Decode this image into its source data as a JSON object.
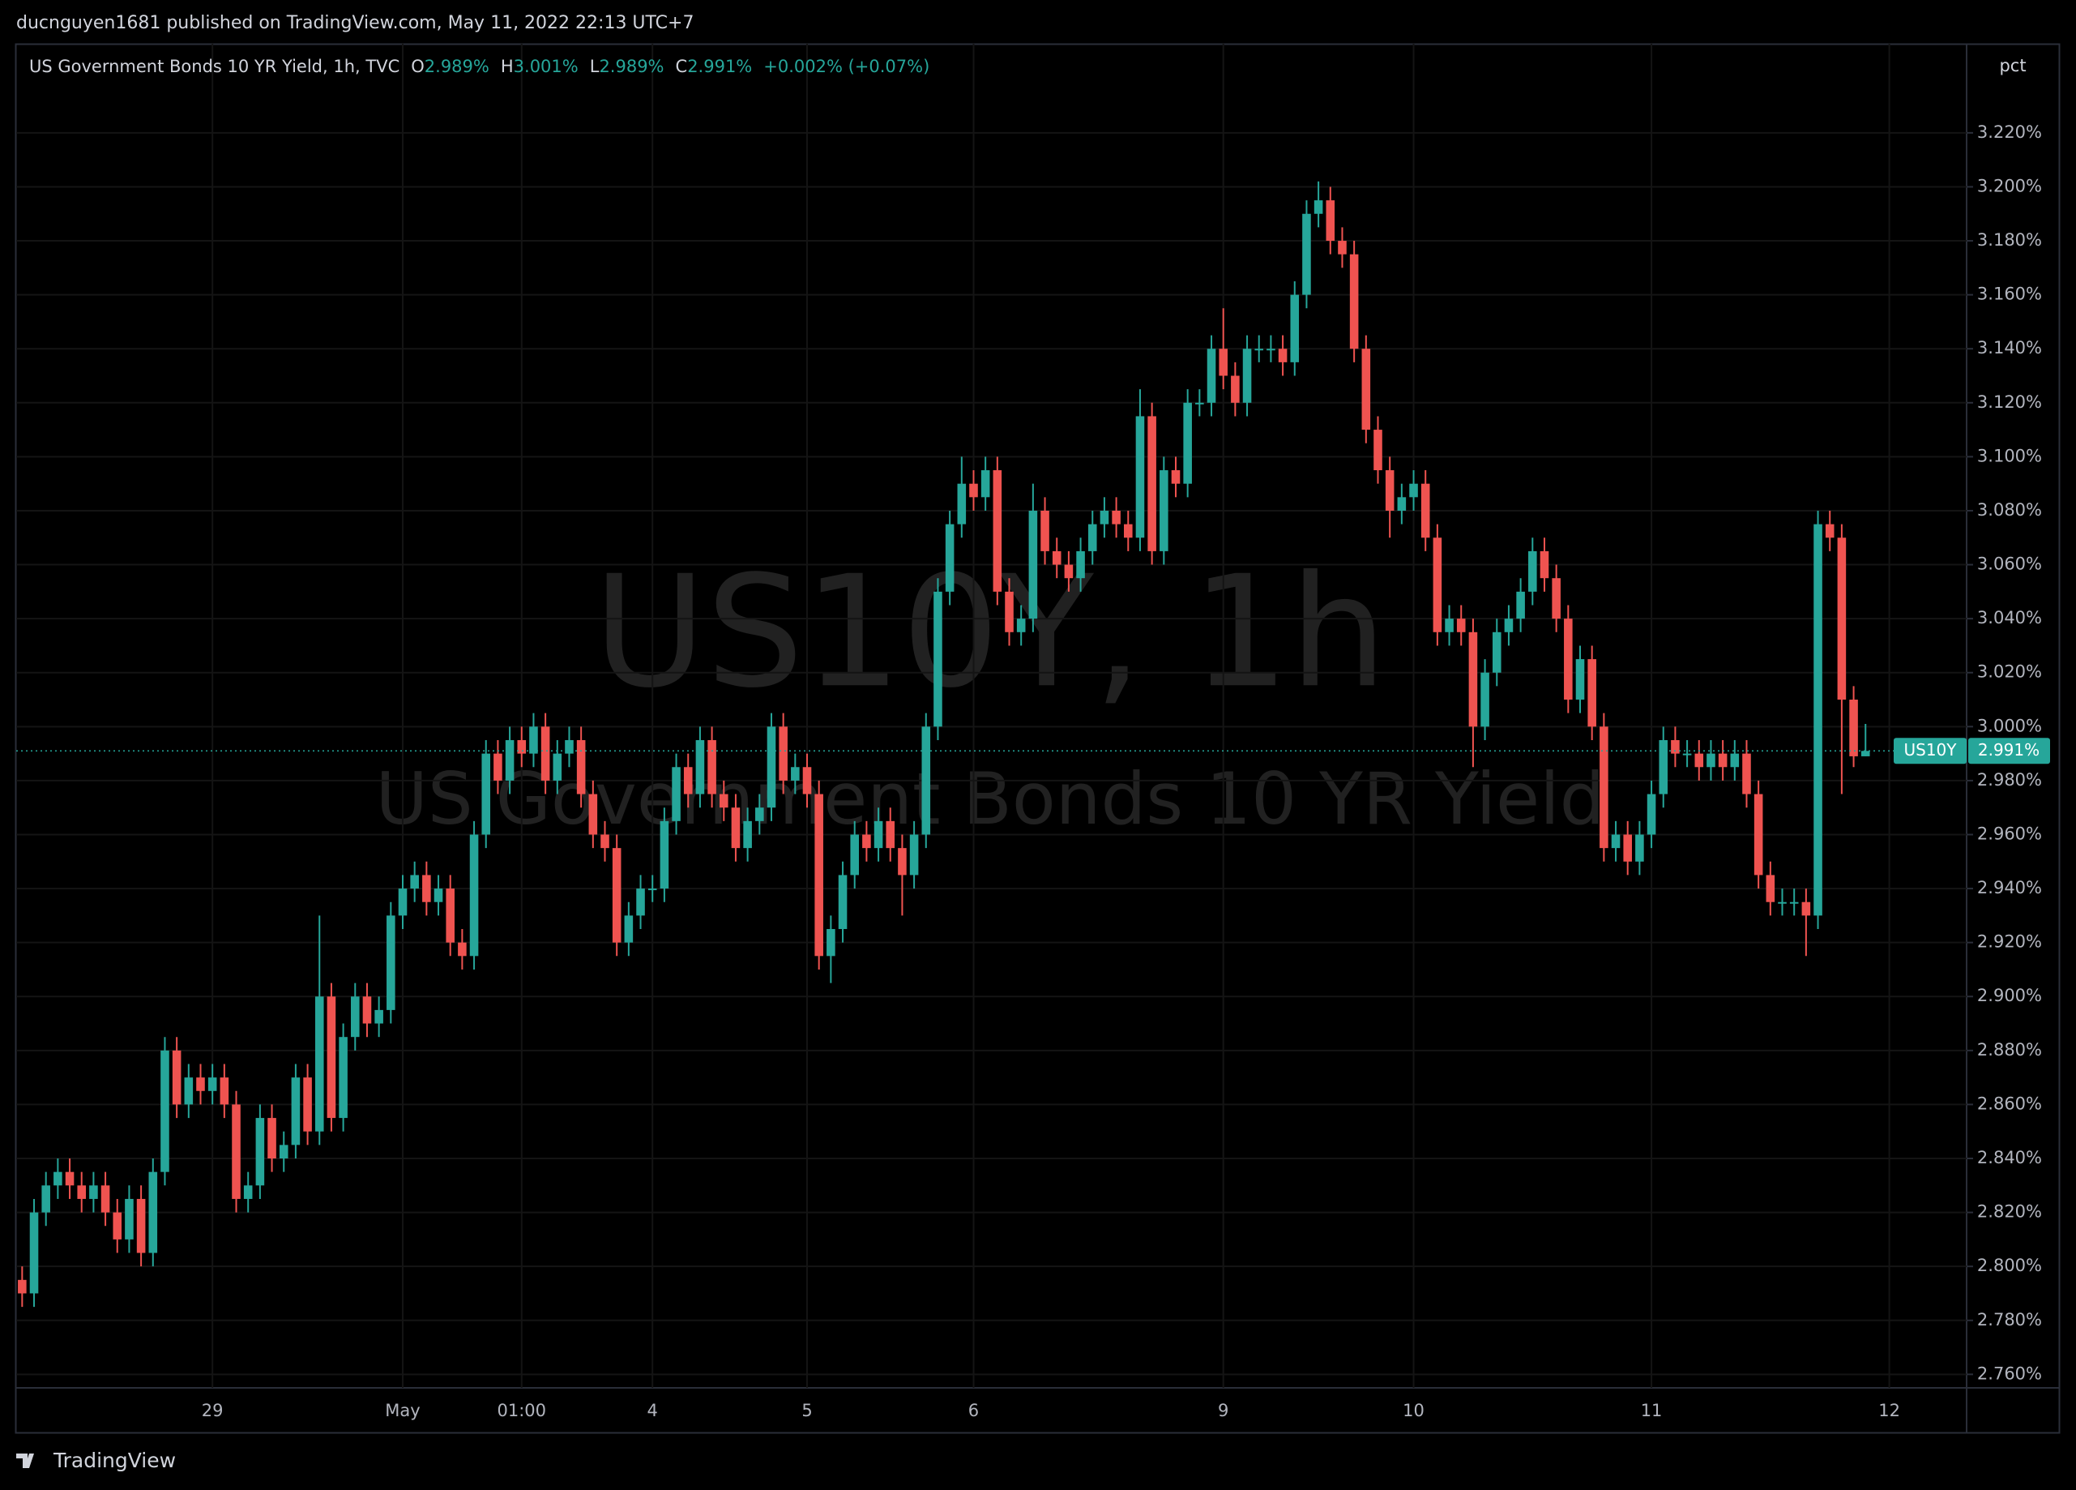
{
  "header": {
    "publisher": "ducnguyen1681 published on TradingView.com, May 11, 2022 22:13 UTC+7"
  },
  "footer": {
    "brand": "TradingView"
  },
  "chart_data": {
    "type": "candlestick",
    "symbol": "US10Y",
    "watermark": {
      "line1": "US10Y, 1h",
      "line2": "US Government Bonds 10 YR Yield"
    },
    "legend": {
      "title": "US Government Bonds 10 YR Yield, 1h, TVC",
      "o_label": "O",
      "o": "2.989%",
      "h_label": "H",
      "h": "3.001%",
      "l_label": "L",
      "l": "2.989%",
      "c_label": "C",
      "c": "2.991%",
      "change": "+0.002% (+0.07%)"
    },
    "y_unit": "pct",
    "up_color": "#26a69a",
    "down_color": "#ef5350",
    "grid": true,
    "last_price": {
      "value": 2.991,
      "label": "2.991%"
    },
    "ylim": [
      2.755,
      3.253
    ],
    "yticks": [
      {
        "value": 2.76,
        "label": "2.760%"
      },
      {
        "value": 2.78,
        "label": "2.780%"
      },
      {
        "value": 2.8,
        "label": "2.800%"
      },
      {
        "value": 2.82,
        "label": "2.820%"
      },
      {
        "value": 2.84,
        "label": "2.840%"
      },
      {
        "value": 2.86,
        "label": "2.860%"
      },
      {
        "value": 2.88,
        "label": "2.880%"
      },
      {
        "value": 2.9,
        "label": "2.900%"
      },
      {
        "value": 2.92,
        "label": "2.920%"
      },
      {
        "value": 2.94,
        "label": "2.940%"
      },
      {
        "value": 2.96,
        "label": "2.960%"
      },
      {
        "value": 2.98,
        "label": "2.980%"
      },
      {
        "value": 3.0,
        "label": "3.000%"
      },
      {
        "value": 3.02,
        "label": "3.020%"
      },
      {
        "value": 3.04,
        "label": "3.040%"
      },
      {
        "value": 3.06,
        "label": "3.060%"
      },
      {
        "value": 3.08,
        "label": "3.080%"
      },
      {
        "value": 3.1,
        "label": "3.100%"
      },
      {
        "value": 3.12,
        "label": "3.120%"
      },
      {
        "value": 3.14,
        "label": "3.140%"
      },
      {
        "value": 3.16,
        "label": "3.160%"
      },
      {
        "value": 3.18,
        "label": "3.180%"
      },
      {
        "value": 3.2,
        "label": "3.200%"
      },
      {
        "value": 3.22,
        "label": "3.220%"
      }
    ],
    "categories": [
      null,
      null,
      null,
      null,
      null,
      null,
      null,
      null,
      null,
      null,
      null,
      null,
      null,
      null,
      null,
      null,
      "29",
      null,
      null,
      null,
      null,
      null,
      null,
      null,
      null,
      null,
      null,
      null,
      null,
      null,
      null,
      null,
      "May",
      null,
      null,
      null,
      null,
      null,
      null,
      null,
      null,
      null,
      "01:00",
      null,
      null,
      null,
      null,
      null,
      null,
      null,
      null,
      null,
      null,
      "4",
      null,
      null,
      null,
      null,
      null,
      null,
      null,
      null,
      null,
      null,
      null,
      null,
      "5",
      null,
      null,
      null,
      null,
      null,
      null,
      null,
      null,
      null,
      null,
      null,
      null,
      null,
      "6",
      null,
      null,
      null,
      null,
      null,
      null,
      null,
      null,
      null,
      null,
      null,
      null,
      null,
      null,
      null,
      null,
      null,
      null,
      null,
      null,
      "9",
      null,
      null,
      null,
      null,
      null,
      null,
      null,
      null,
      null,
      null,
      null,
      null,
      null,
      null,
      null,
      "10",
      null,
      null,
      null,
      null,
      null,
      null,
      null,
      null,
      null,
      null,
      null,
      null,
      null,
      null,
      null,
      null,
      null,
      null,
      null,
      "11",
      null,
      null,
      null,
      null,
      null,
      null,
      null,
      null,
      null,
      null,
      null,
      null,
      null,
      null,
      null,
      null,
      null,
      null,
      null,
      "12",
      null,
      null,
      null,
      null,
      null,
      null
    ],
    "open": [
      2.795,
      2.79,
      2.82,
      2.83,
      2.835,
      2.83,
      2.825,
      2.83,
      2.82,
      2.81,
      2.825,
      2.805,
      2.835,
      2.88,
      2.86,
      2.87,
      2.865,
      2.87,
      2.86,
      2.825,
      2.83,
      2.855,
      2.84,
      2.845,
      2.87,
      2.85,
      2.9,
      2.855,
      2.885,
      2.9,
      2.89,
      2.895,
      2.93,
      2.94,
      2.945,
      2.935,
      2.94,
      2.92,
      2.915,
      2.96,
      2.99,
      2.98,
      2.995,
      2.99,
      3.0,
      2.98,
      2.99,
      2.995,
      2.975,
      2.96,
      2.955,
      2.92,
      2.93,
      2.94,
      2.94,
      2.965,
      2.985,
      2.975,
      2.995,
      2.975,
      2.97,
      2.955,
      2.965,
      2.97,
      3.0,
      2.98,
      2.985,
      2.975,
      2.915,
      2.925,
      2.945,
      2.96,
      2.955,
      2.965,
      2.955,
      2.945,
      2.96,
      3.0,
      3.05,
      3.075,
      3.09,
      3.085,
      3.095,
      3.05,
      3.035,
      3.04,
      3.08,
      3.065,
      3.06,
      3.055,
      3.065,
      3.075,
      3.08,
      3.075,
      3.07,
      3.115,
      3.065,
      3.095,
      3.09,
      3.12,
      3.12,
      3.14,
      3.13,
      3.12,
      3.14,
      3.14,
      3.14,
      3.135,
      3.16,
      3.19,
      3.195,
      3.18,
      3.175,
      3.14,
      3.11,
      3.095,
      3.08,
      3.085,
      3.09,
      3.07,
      3.035,
      3.04,
      3.035,
      3.0,
      3.02,
      3.035,
      3.04,
      3.05,
      3.065,
      3.055,
      3.04,
      3.01,
      3.025,
      3.0,
      2.955,
      2.96,
      2.95,
      2.96,
      2.975,
      2.995,
      2.99,
      2.99,
      2.985,
      2.99,
      2.985,
      2.99,
      2.975,
      2.945,
      2.935,
      2.935,
      2.935,
      2.93,
      3.075,
      3.07,
      3.01,
      2.989,
      null,
      null,
      null,
      null,
      null,
      null,
      null,
      null
    ],
    "high": [
      2.8,
      2.825,
      2.835,
      2.84,
      2.84,
      2.835,
      2.835,
      2.835,
      2.825,
      2.83,
      2.83,
      2.84,
      2.885,
      2.885,
      2.875,
      2.875,
      2.875,
      2.875,
      2.865,
      2.835,
      2.86,
      2.86,
      2.85,
      2.875,
      2.875,
      2.93,
      2.905,
      2.89,
      2.905,
      2.905,
      2.9,
      2.935,
      2.945,
      2.95,
      2.95,
      2.945,
      2.945,
      2.925,
      2.965,
      2.995,
      2.995,
      3.0,
      3.0,
      3.005,
      3.005,
      2.995,
      3.0,
      3.0,
      2.98,
      2.965,
      2.96,
      2.935,
      2.945,
      2.945,
      2.97,
      2.99,
      2.99,
      3.0,
      3.0,
      2.98,
      2.975,
      2.97,
      2.975,
      3.005,
      3.005,
      2.99,
      2.99,
      2.98,
      2.93,
      2.95,
      2.965,
      2.965,
      2.97,
      2.97,
      2.96,
      2.965,
      3.005,
      3.055,
      3.08,
      3.1,
      3.095,
      3.1,
      3.1,
      3.055,
      3.045,
      3.09,
      3.085,
      3.07,
      3.065,
      3.07,
      3.08,
      3.085,
      3.085,
      3.08,
      3.125,
      3.12,
      3.1,
      3.1,
      3.125,
      3.125,
      3.145,
      3.155,
      3.135,
      3.145,
      3.145,
      3.145,
      3.145,
      3.165,
      3.195,
      3.202,
      3.2,
      3.185,
      3.18,
      3.145,
      3.115,
      3.1,
      3.09,
      3.095,
      3.095,
      3.075,
      3.045,
      3.045,
      3.04,
      3.025,
      3.04,
      3.045,
      3.055,
      3.07,
      3.07,
      3.06,
      3.045,
      3.03,
      3.03,
      3.005,
      2.965,
      2.965,
      2.965,
      2.98,
      3.0,
      3.0,
      2.995,
      2.995,
      2.995,
      2.995,
      2.995,
      2.995,
      2.98,
      2.95,
      2.94,
      2.94,
      2.94,
      3.08,
      3.08,
      3.075,
      3.015,
      3.001,
      null,
      null,
      null,
      null,
      null,
      null,
      null,
      null
    ],
    "low": [
      2.785,
      2.785,
      2.815,
      2.825,
      2.825,
      2.82,
      2.82,
      2.815,
      2.805,
      2.805,
      2.8,
      2.8,
      2.83,
      2.855,
      2.855,
      2.86,
      2.86,
      2.855,
      2.82,
      2.82,
      2.825,
      2.835,
      2.835,
      2.84,
      2.845,
      2.845,
      2.85,
      2.85,
      2.88,
      2.885,
      2.885,
      2.89,
      2.925,
      2.935,
      2.93,
      2.93,
      2.915,
      2.91,
      2.91,
      2.955,
      2.975,
      2.975,
      2.985,
      2.985,
      2.975,
      2.975,
      2.985,
      2.97,
      2.955,
      2.95,
      2.915,
      2.915,
      2.925,
      2.935,
      2.935,
      2.96,
      2.97,
      2.97,
      2.97,
      2.965,
      2.95,
      2.95,
      2.96,
      2.965,
      2.975,
      2.975,
      2.97,
      2.91,
      2.905,
      2.92,
      2.94,
      2.95,
      2.95,
      2.95,
      2.93,
      2.94,
      2.955,
      2.995,
      3.045,
      3.07,
      3.08,
      3.08,
      3.045,
      3.03,
      3.03,
      3.035,
      3.06,
      3.055,
      3.05,
      3.05,
      3.06,
      3.07,
      3.07,
      3.065,
      3.065,
      3.06,
      3.06,
      3.085,
      3.085,
      3.115,
      3.115,
      3.125,
      3.115,
      3.115,
      3.135,
      3.135,
      3.13,
      3.13,
      3.155,
      3.185,
      3.175,
      3.17,
      3.135,
      3.105,
      3.09,
      3.07,
      3.075,
      3.08,
      3.065,
      3.03,
      3.03,
      3.03,
      2.985,
      2.995,
      3.015,
      3.03,
      3.035,
      3.045,
      3.05,
      3.035,
      3.005,
      3.005,
      2.995,
      2.95,
      2.95,
      2.945,
      2.945,
      2.955,
      2.97,
      2.985,
      2.985,
      2.98,
      2.98,
      2.98,
      2.98,
      2.97,
      2.94,
      2.93,
      2.93,
      2.93,
      2.915,
      2.925,
      3.065,
      2.975,
      2.985,
      2.989,
      null,
      null,
      null,
      null,
      null,
      null,
      null,
      null
    ],
    "close": [
      2.79,
      2.82,
      2.83,
      2.835,
      2.83,
      2.825,
      2.83,
      2.82,
      2.81,
      2.825,
      2.805,
      2.835,
      2.88,
      2.86,
      2.87,
      2.865,
      2.87,
      2.86,
      2.825,
      2.83,
      2.855,
      2.84,
      2.845,
      2.87,
      2.85,
      2.9,
      2.855,
      2.885,
      2.9,
      2.89,
      2.895,
      2.93,
      2.94,
      2.945,
      2.935,
      2.94,
      2.92,
      2.915,
      2.96,
      2.99,
      2.98,
      2.995,
      2.99,
      3.0,
      2.98,
      2.99,
      2.995,
      2.975,
      2.96,
      2.955,
      2.92,
      2.93,
      2.94,
      2.94,
      2.965,
      2.985,
      2.975,
      2.995,
      2.975,
      2.97,
      2.955,
      2.965,
      2.97,
      3.0,
      2.98,
      2.985,
      2.975,
      2.915,
      2.925,
      2.945,
      2.96,
      2.955,
      2.965,
      2.955,
      2.945,
      2.96,
      3.0,
      3.05,
      3.075,
      3.09,
      3.085,
      3.095,
      3.05,
      3.035,
      3.04,
      3.08,
      3.065,
      3.06,
      3.055,
      3.065,
      3.075,
      3.08,
      3.075,
      3.07,
      3.115,
      3.065,
      3.095,
      3.09,
      3.12,
      3.12,
      3.14,
      3.13,
      3.12,
      3.14,
      3.14,
      3.14,
      3.135,
      3.16,
      3.19,
      3.195,
      3.18,
      3.175,
      3.14,
      3.11,
      3.095,
      3.08,
      3.085,
      3.09,
      3.07,
      3.035,
      3.04,
      3.035,
      3.0,
      3.02,
      3.035,
      3.04,
      3.05,
      3.065,
      3.055,
      3.04,
      3.01,
      3.025,
      3.0,
      2.955,
      2.96,
      2.95,
      2.96,
      2.975,
      2.995,
      2.99,
      2.99,
      2.985,
      2.99,
      2.985,
      2.99,
      2.975,
      2.945,
      2.935,
      2.935,
      2.935,
      2.93,
      3.075,
      3.07,
      3.01,
      2.989,
      2.991,
      null,
      null,
      null,
      null,
      null,
      null,
      null,
      null
    ]
  }
}
